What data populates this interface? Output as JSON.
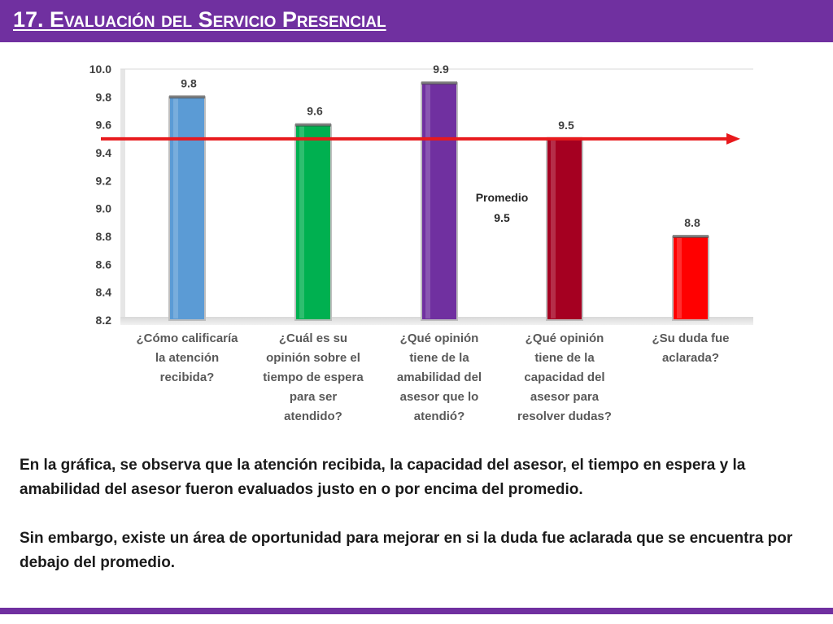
{
  "header": {
    "title": "17. Evaluación del Servicio Presencial"
  },
  "chart_data": {
    "type": "bar",
    "categories": [
      "¿Cómo calificaría la atención recibida?",
      "¿Cuál es su opinión sobre el tiempo de espera para ser atendido?",
      "¿Qué opinión tiene de la amabilidad del asesor que lo atendió?",
      "¿Qué opinión tiene de la capacidad del asesor para resolver dudas?",
      "¿Su duda fue aclarada?"
    ],
    "category_lines": [
      [
        "¿Cómo calificaría",
        "la atención",
        "recibida?"
      ],
      [
        "¿Cuál es su",
        "opinión sobre el",
        "tiempo de espera",
        "para ser",
        "atendido?"
      ],
      [
        "¿Qué opinión",
        "tiene de la",
        "amabilidad del",
        "asesor que lo",
        "atendió?"
      ],
      [
        "¿Qué opinión",
        "tiene de la",
        "capacidad del",
        "asesor para",
        "resolver dudas?"
      ],
      [
        "¿Su duda fue",
        "aclarada?"
      ]
    ],
    "values": [
      9.8,
      9.6,
      9.9,
      9.5,
      8.8
    ],
    "value_labels": [
      "9.8",
      "9.6",
      "9.9",
      "9.5",
      "8.8"
    ],
    "colors": [
      "#5b9bd5",
      "#00b050",
      "#7030a0",
      "#a50021",
      "#ff0000"
    ],
    "ylim": [
      8.2,
      10.0
    ],
    "yticks": [
      "8.2",
      "8.4",
      "8.6",
      "8.8",
      "9.0",
      "9.2",
      "9.4",
      "9.6",
      "9.8",
      "10.0"
    ],
    "reference_line": {
      "value": 9.5,
      "color": "#e8191c",
      "label_lines": [
        "Promedio",
        "9.5"
      ]
    },
    "grid": false,
    "legend": "none"
  },
  "body": {
    "paragraph_1": "En la gráfica, se observa que la atención recibida, la capacidad del asesor, el tiempo en espera y la amabilidad del asesor fueron evaluados justo en o por encima del promedio.",
    "paragraph_2": "Sin embargo, existe un área de oportunidad para mejorar en si la duda fue aclarada que se encuentra por debajo del promedio."
  },
  "theme": {
    "accent": "#7030a0"
  }
}
